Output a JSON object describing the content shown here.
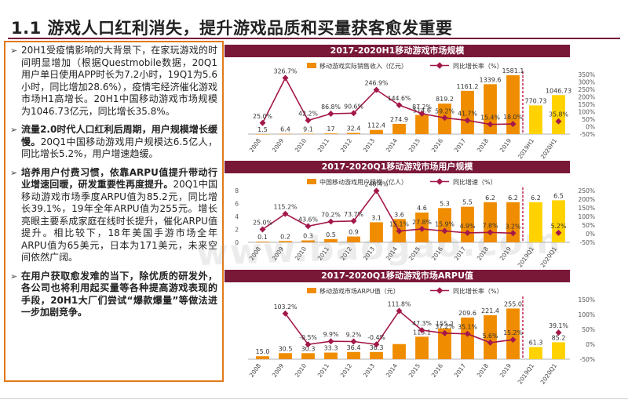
{
  "page": {
    "title": "1.1 游戏人口红利消失，提升游戏品质和买量获客愈发重要"
  },
  "text_blocks": [
    {
      "arrow": "➢",
      "parts": [
        {
          "bold": false,
          "text": "20H1受疫情影响的大背景下，在家玩游戏的时间明显增加（根据Questmobile数据，20Q1用户单日使用APP时长为7.2小时，19Q1为5.6小时，同比增加28.6%），疫情宅经济催化游戏市场H1高增长。20H1中国移动游戏市场规模为1046.73亿元，同比增长35.8%。"
        }
      ]
    },
    {
      "arrow": "➢",
      "parts": [
        {
          "bold": true,
          "text": "流量2.0时代人口红利后周期，用户规模增长缓慢。"
        },
        {
          "bold": false,
          "text": "20Q1中国移动游戏用户规模达6.5亿人，同比增长5.2%，用户增速趋缓。"
        }
      ]
    },
    {
      "arrow": "➢",
      "parts": [
        {
          "bold": true,
          "text": "培养用户付费习惯，依靠ARPU值提升带动行业增速回暖，研发重要性再度提升。"
        },
        {
          "bold": false,
          "text": "20Q1中国移动游戏市场季度ARPU值为85.2元，同比增长39.1%，19年全年ARPU值为255元。增长亮眼主要系成家庭在线时长提升，催化ARPU值提升。相比较下，18年美国手游市场全年ARPU值为65美元，日本为171美元，未来空间依然广阔。"
        }
      ]
    },
    {
      "arrow": "➢",
      "parts": [
        {
          "bold": true,
          "text": "在用户获取愈发难的当下，除优质的研发外，各公司也将利用起买量等各种提高游戏表现的手段，20H1大厂们尝试“爆款爆量”等做法进一步加剧竞争。"
        }
      ]
    }
  ],
  "watermark": "www.baogao.com",
  "colors": {
    "bar": "#f08c00",
    "bar_highlight": "#ffd200",
    "line": "#a3174a",
    "header": "#7a1838"
  },
  "chart_data": [
    {
      "type": "bar",
      "title": "2017-2020H1移动游戏市场规模",
      "legend": [
        "移动游戏实际销售收入（亿元）",
        "同比增长率（%）"
      ],
      "categories": [
        "2008",
        "2009",
        "2010",
        "2011",
        "2012",
        "2013",
        "2014",
        "2015",
        "2016",
        "2017",
        "2018",
        "2019",
        "2019H1",
        "2020H1"
      ],
      "values": [
        1.5,
        6.4,
        9.1,
        17,
        32.4,
        112.4,
        274.9,
        514.6,
        819.2,
        1161.2,
        1339.6,
        1581.1,
        770.73,
        1046.73
      ],
      "value_labels": [
        "1.5",
        "6.4",
        "9.1",
        "17",
        "32.4",
        "112.4",
        "274.9",
        "514.6",
        "819.2",
        "1161.2",
        "1339.6",
        "1581.1",
        "770.73",
        "1046.73"
      ],
      "growth": [
        25.0,
        326.7,
        42.2,
        86.8,
        90.6,
        246.9,
        144.6,
        87.2,
        59.2,
        41.7,
        15.4,
        18.0,
        null,
        35.8
      ],
      "growth_labels": [
        "25.0%",
        "326.7%",
        "42.2%",
        "86.8%",
        "90.6%",
        "246.9%",
        "144.6%",
        "87.2%",
        "59.2%",
        "41.7%",
        "15.4%",
        "18.0%",
        "",
        "35.8%"
      ],
      "right_axis_ticks": [
        "-50%",
        "0%",
        "50%",
        "100%",
        "150%",
        "200%",
        "250%",
        "300%",
        "350%"
      ],
      "ylim_left": [
        0,
        1600
      ],
      "ylim_right": [
        -50,
        350
      ],
      "highlight_from": 12
    },
    {
      "type": "bar",
      "title": "2017-2020Q1移动游戏市场用户规模",
      "legend": [
        "中国移动游戏用户规模（亿人）",
        "同比增速（%）"
      ],
      "categories": [
        "2008",
        "2009",
        "2010",
        "2011",
        "2012",
        "2013",
        "2014",
        "2015",
        "2016",
        "2017",
        "2018",
        "2019",
        "2019Q1",
        "2020Q1"
      ],
      "values": [
        0.1,
        0.2,
        0.3,
        0.5,
        0.9,
        3.1,
        3.6,
        4.6,
        5.3,
        5.5,
        6.2,
        6.2,
        6.2,
        6.5
      ],
      "value_labels": [
        "0.1",
        "0.2",
        "0.3",
        "0.5",
        "0.9",
        "3.1",
        "3.6",
        "4.6",
        "5.3",
        "5.5",
        "6.2",
        "6.2",
        "6.2",
        "6.5"
      ],
      "growth": [
        25.0,
        115.2,
        43.6,
        70.2,
        73.7,
        248.4,
        15.1,
        27.8,
        15.9,
        4.9,
        7.8,
        3.2,
        null,
        5.2
      ],
      "growth_labels": [
        "25.0%",
        "115.2%",
        "43.6%",
        "70.2%",
        "73.7%",
        "248.4%",
        "15.1%",
        "27.8%",
        "15.9%",
        "4.9%",
        "7.8%",
        "3.2%",
        "",
        "5.2%"
      ],
      "left_axis_ticks": [
        "0",
        "2",
        "4",
        "6",
        "8"
      ],
      "right_axis_ticks": [
        "-50%",
        "0%",
        "50%",
        "100%",
        "150%",
        "200%",
        "250%"
      ],
      "ylim_left": [
        0,
        8
      ],
      "ylim_right": [
        -50,
        250
      ],
      "highlight_from": 12
    },
    {
      "type": "bar",
      "title": "2017-2020Q1移动游戏市场ARPU值",
      "legend": [
        "移动游戏市场ARPU值（元）",
        "同比增长率（%）"
      ],
      "categories": [
        "2008",
        "2009",
        "2010",
        "2011",
        "2012",
        "2013",
        "2014",
        "2015",
        "2016",
        "2017",
        "2018",
        "2019",
        "2019Q1",
        "2020Q1"
      ],
      "values": [
        15.0,
        30.5,
        30.3,
        33.3,
        36.4,
        36.3,
        76.1,
        113.1,
        155.2,
        209.6,
        221.4,
        255.0,
        61.3,
        85.2
      ],
      "value_labels": [
        "15.0",
        "30.5",
        "30.3",
        "33.3",
        "36.4",
        "36.3",
        "",
        "113.1",
        "155.2",
        "209.6",
        "221.4",
        "255.0",
        "61.3",
        "85.2"
      ],
      "growth": [
        null,
        103.2,
        -0.5,
        9.9,
        9.2,
        -0.4,
        111.8,
        47.3,
        37.2,
        35.1,
        5.6,
        15.2,
        null,
        39.1
      ],
      "growth_labels": [
        "",
        "103.2%",
        "-0.5%",
        "9.9%",
        "9.2%",
        "-0.4%",
        "111.8%",
        "47.3%",
        "37.2%",
        "35.1%",
        "5.6%",
        "15.2%",
        "",
        "39.1%"
      ],
      "right_axis_ticks": [
        "-50%",
        "0%",
        "50%",
        "100%",
        "150%"
      ],
      "ylim_left": [
        0,
        300
      ],
      "ylim_right": [
        -50,
        150
      ],
      "highlight_from": 12
    }
  ]
}
